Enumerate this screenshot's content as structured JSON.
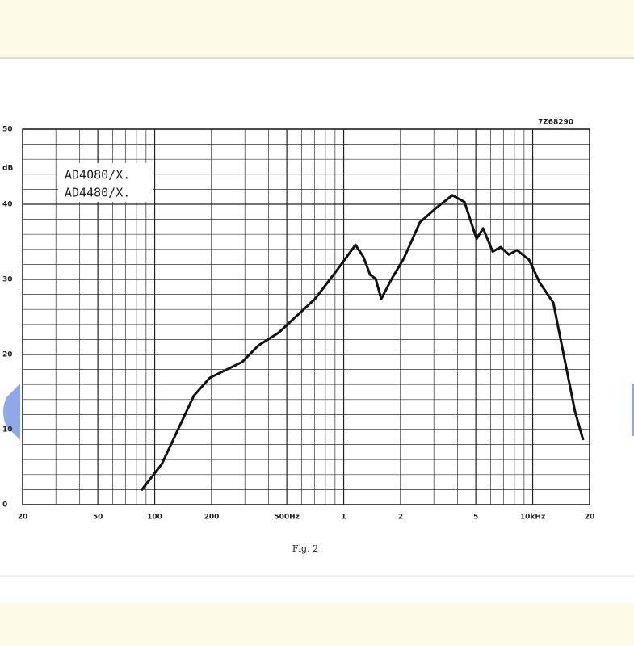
{
  "chart_data": {
    "type": "line",
    "code": "7Z68290",
    "y_unit": "dB",
    "annotation_lines": [
      "AD4080/X.",
      "AD4480/X."
    ],
    "caption": "Fig. 2",
    "log_x": true,
    "grid": true,
    "color": "#111111",
    "xlim": [
      20,
      20000
    ],
    "ylim": [
      0,
      50
    ],
    "xticks": [
      20,
      50,
      100,
      200,
      {
        "value": 500,
        "label": "500Hz"
      },
      {
        "value": 1000,
        "label": "1"
      },
      {
        "value": 2000,
        "label": "2"
      },
      {
        "value": 5000,
        "label": "5"
      },
      {
        "value": 10000,
        "label": "10kHz"
      },
      {
        "value": 20000,
        "label": "20"
      }
    ],
    "minor_xticks": [
      30,
      40,
      60,
      70,
      80,
      90,
      300,
      400,
      600,
      700,
      800,
      900,
      3000,
      4000,
      6000,
      7000,
      8000,
      9000
    ],
    "yticks": [
      0,
      10,
      20,
      30,
      40,
      50
    ],
    "minor_yticks": [
      2,
      4,
      6,
      8,
      12,
      14,
      16,
      18,
      22,
      24,
      26,
      28,
      32,
      34,
      36,
      38,
      42,
      44,
      46,
      48
    ],
    "x": [
      85,
      109,
      161,
      196,
      290,
      354,
      453,
      551,
      705,
      901,
      1154,
      1271,
      1380,
      1476,
      1579,
      1796,
      2081,
      2534,
      3085,
      3757,
      4355,
      5050,
      5460,
      6140,
      6775,
      7480,
      8250,
      9570,
      10870,
      12860,
      14900,
      16760,
      18500
    ],
    "values": [
      1.9,
      5.4,
      14.5,
      16.9,
      19,
      21.2,
      22.9,
      24.9,
      27.4,
      30.9,
      34.6,
      33,
      30.6,
      30.1,
      27.4,
      30.1,
      32.8,
      37.6,
      39.5,
      41.2,
      40.3,
      35.4,
      36.8,
      33.7,
      34.3,
      33.3,
      33.9,
      32.6,
      29.6,
      26.9,
      18.8,
      12.4,
      8.6
    ]
  }
}
